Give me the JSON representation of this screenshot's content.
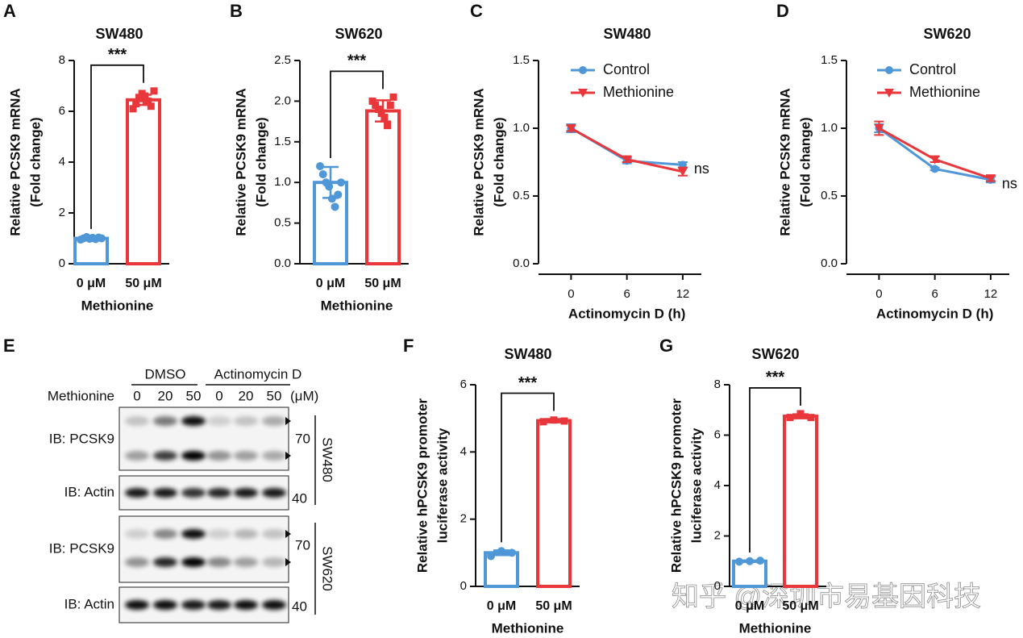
{
  "chart_data": [
    {
      "type": "bar",
      "panel": "A",
      "title": "SW480",
      "ylabel": [
        "Relative PCSK9 mRNA",
        "(Fold change)"
      ],
      "xlabel": "Methionine",
      "categories": [
        "0 μM",
        "50 μM"
      ],
      "values": [
        1.0,
        6.45
      ],
      "errors": [
        0.05,
        0.2
      ],
      "points": [
        [
          0.95,
          1.0,
          1.05,
          0.98,
          1.02,
          0.97,
          1.03,
          1.0
        ],
        [
          6.1,
          6.3,
          6.5,
          6.7,
          6.6,
          6.4,
          6.2,
          6.8
        ]
      ],
      "colors": [
        "#4f97d6",
        "#e8363a"
      ],
      "ylim": [
        0,
        8
      ],
      "yticks": [
        0,
        2,
        4,
        6,
        8
      ],
      "annotation": "***"
    },
    {
      "type": "bar",
      "panel": "B",
      "title": "SW620",
      "ylabel": [
        "Relative PCSK9 mRNA",
        "(Fold change)"
      ],
      "xlabel": "Methionine",
      "categories": [
        "0 μM",
        "50 μM"
      ],
      "values": [
        1.0,
        1.88
      ],
      "errors": [
        0.19,
        0.13
      ],
      "points": [
        [
          1.2,
          1.1,
          1.0,
          0.95,
          0.8,
          0.7,
          0.85,
          1.0
        ],
        [
          2.0,
          1.95,
          1.9,
          1.85,
          1.8,
          1.7,
          1.95,
          2.05
        ]
      ],
      "colors": [
        "#4f97d6",
        "#e8363a"
      ],
      "ylim": [
        0,
        2.5
      ],
      "yticks": [
        {
          "value": 0,
          "label": "0.0"
        },
        0.5,
        {
          "value": 1,
          "label": "1.0"
        },
        1.5,
        {
          "value": 2,
          "label": "2.0"
        },
        2.5
      ],
      "annotation": "***"
    },
    {
      "type": "line",
      "panel": "C",
      "title": "SW480",
      "ylabel": [
        "Relative PCSK9 mRNA",
        "(Fold change)"
      ],
      "xlabel": "Actinomycin D (h)",
      "x": [
        0,
        6,
        12
      ],
      "xlim": [
        -3.5,
        14
      ],
      "xticks": [
        0,
        6,
        12
      ],
      "series": [
        {
          "name": "Control",
          "color": "#4f97d6",
          "marker": "circle",
          "values": [
            1.0,
            0.76,
            0.73
          ],
          "errors": [
            0.03,
            0.02,
            0.02
          ]
        },
        {
          "name": "Methionine",
          "color": "#e8363a",
          "marker": "triangle-down",
          "values": [
            1.0,
            0.77,
            0.68
          ],
          "errors": [
            0.02,
            0.02,
            0.03
          ]
        }
      ],
      "ylim": [
        0,
        1.5
      ],
      "yticks": [
        {
          "value": 0,
          "label": "0.0"
        },
        0.5,
        {
          "value": 1,
          "label": "1.0"
        },
        1.5
      ],
      "annotation": "ns"
    },
    {
      "type": "line",
      "panel": "D",
      "title": "SW620",
      "ylabel": [
        "Relative PCSK9 mRNA",
        "(Fold change)"
      ],
      "xlabel": "Actinomycin D (h)",
      "x": [
        0,
        6,
        12
      ],
      "xlim": [
        -3.5,
        14
      ],
      "xticks": [
        0,
        6,
        12
      ],
      "series": [
        {
          "name": "Control",
          "color": "#4f97d6",
          "marker": "circle",
          "values": [
            1.0,
            0.7,
            0.62
          ],
          "errors": [
            0.03,
            0.01,
            0.02
          ]
        },
        {
          "name": "Methionine",
          "color": "#e8363a",
          "marker": "triangle-down",
          "values": [
            1.0,
            0.77,
            0.63
          ],
          "errors": [
            0.05,
            0.02,
            0.02
          ]
        }
      ],
      "ylim": [
        0,
        1.5
      ],
      "yticks": [
        {
          "value": 0,
          "label": "0.0"
        },
        0.5,
        {
          "value": 1,
          "label": "1.0"
        },
        1.5
      ],
      "annotation": "ns"
    },
    {
      "type": "bar",
      "panel": "F",
      "title": "SW480",
      "ylabel": [
        "Relative hPCSK9 promoter",
        "luciferase activity"
      ],
      "xlabel": "Methionine",
      "categories": [
        "0 μM",
        "50 μM"
      ],
      "values": [
        1.0,
        4.93
      ],
      "errors": [
        0.07,
        0.05
      ],
      "points": [
        [
          0.9,
          1.05,
          1.0
        ],
        [
          4.9,
          4.95,
          4.92
        ]
      ],
      "colors": [
        "#4f97d6",
        "#e8363a"
      ],
      "ylim": [
        0,
        6
      ],
      "yticks": [
        0,
        2,
        4,
        6
      ],
      "annotation": "***"
    },
    {
      "type": "bar",
      "panel": "G",
      "title": "SW620",
      "ylabel": [
        "Relative hPCSK9 promoter",
        "luciferase activity"
      ],
      "xlabel": "Methionine",
      "categories": [
        "0 μM",
        "50 μM"
      ],
      "values": [
        1.0,
        6.75
      ],
      "errors": [
        0.03,
        0.08
      ],
      "points": [
        [
          0.98,
          1.0,
          1.02
        ],
        [
          6.7,
          6.85,
          6.7
        ]
      ],
      "colors": [
        "#4f97d6",
        "#e8363a"
      ],
      "ylim": [
        0,
        8
      ],
      "yticks": [
        0,
        2,
        4,
        6,
        8
      ],
      "annotation": "***"
    }
  ],
  "blot": {
    "panel": "E",
    "treatments": [
      "DMSO",
      "Actinomycin D"
    ],
    "row_label": "Methionine",
    "lanes": [
      "0",
      "20",
      "50",
      "0",
      "20",
      "50"
    ],
    "unit": "(μM)",
    "rows": [
      "IB: PCSK9",
      "IB: Actin",
      "IB: PCSK9",
      "IB: Actin"
    ],
    "markers": [
      "70",
      "40",
      "70",
      "40"
    ],
    "cell_lines": [
      "SW480",
      "SW620"
    ]
  },
  "watermark": "知乎 @深圳市易基因科技"
}
